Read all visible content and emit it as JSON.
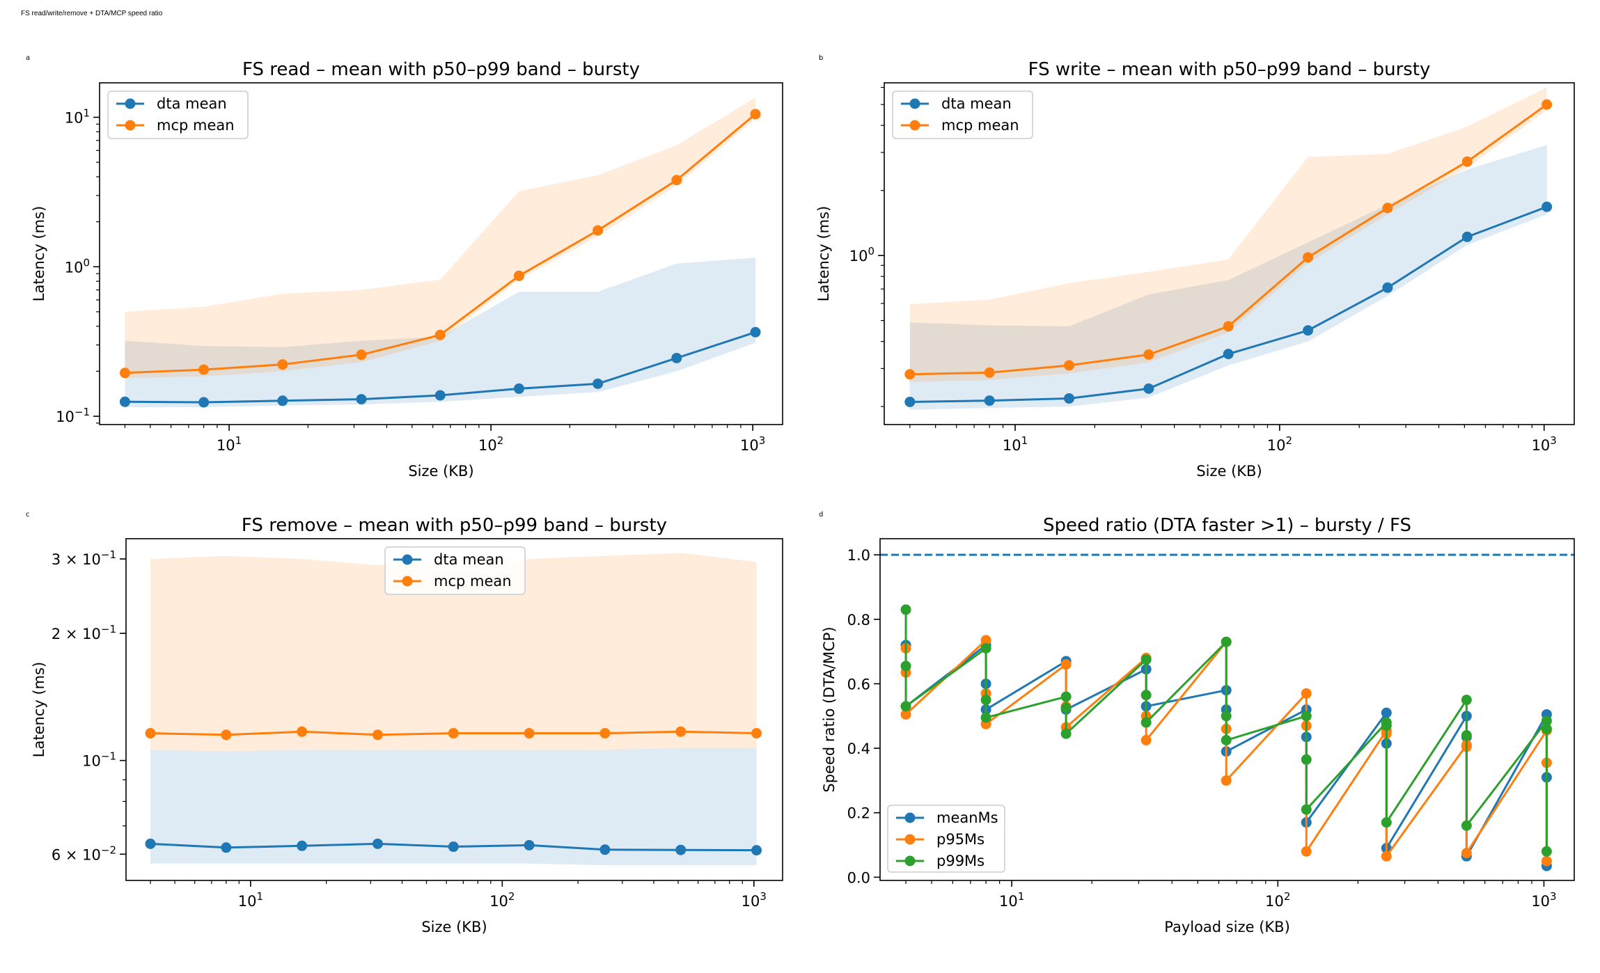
{
  "figure": {
    "suptitle": "FS read/write/remove + DTA/MCP speed ratio"
  },
  "colors": {
    "blue": "#1f77b4",
    "orange": "#ff7f0e",
    "green": "#2ca02c"
  },
  "chart_data": [
    {
      "panel_letter": "a",
      "type": "line",
      "title": "FS read – mean with p50–p99 band – bursty",
      "xlabel": "Size (KB)",
      "ylabel": "Latency (ms)",
      "xscale": "log",
      "yscale": "log",
      "xlim": [
        3.2,
        1300
      ],
      "ylim": [
        0.088,
        17
      ],
      "xticks": [
        {
          "v": 10,
          "label": "10^1"
        },
        {
          "v": 100,
          "label": "10^2"
        },
        {
          "v": 1000,
          "label": "10^3"
        }
      ],
      "yticks": [
        {
          "v": 0.1,
          "label": "10^−1"
        },
        {
          "v": 1,
          "label": "10^0"
        },
        {
          "v": 10,
          "label": "10^1"
        }
      ],
      "legend": "upper left",
      "x": [
        4,
        8,
        16,
        32,
        64,
        128,
        256,
        512,
        1024
      ],
      "series": [
        {
          "name": "dta mean",
          "color": "#1f77b4",
          "values": [
            0.125,
            0.124,
            0.127,
            0.13,
            0.138,
            0.153,
            0.165,
            0.245,
            0.365
          ],
          "band_low": [
            0.115,
            0.115,
            0.118,
            0.12,
            0.125,
            0.135,
            0.145,
            0.2,
            0.31
          ],
          "band_high": [
            0.32,
            0.295,
            0.29,
            0.32,
            0.34,
            0.68,
            0.68,
            1.05,
            1.15
          ]
        },
        {
          "name": "mcp mean",
          "color": "#ff7f0e",
          "values": [
            0.195,
            0.205,
            0.222,
            0.258,
            0.35,
            0.87,
            1.75,
            3.8,
            10.5
          ],
          "band_low": [
            0.18,
            0.185,
            0.2,
            0.23,
            0.32,
            0.82,
            1.6,
            3.5,
            9.8
          ],
          "band_high": [
            0.5,
            0.54,
            0.66,
            0.7,
            0.82,
            3.2,
            4.1,
            6.5,
            13.5
          ]
        }
      ]
    },
    {
      "panel_letter": "b",
      "type": "line",
      "title": "FS write – mean with p50–p99 band – bursty",
      "xlabel": "Size (KB)",
      "ylabel": "Latency (ms)",
      "xscale": "log",
      "yscale": "log",
      "xlim": [
        3.2,
        1300
      ],
      "ylim": [
        0.165,
        6.3
      ],
      "xticks": [
        {
          "v": 10,
          "label": "10^1"
        },
        {
          "v": 100,
          "label": "10^2"
        },
        {
          "v": 1000,
          "label": "10^3"
        }
      ],
      "yticks": [
        {
          "v": 1,
          "label": "10^0"
        }
      ],
      "legend": "upper left",
      "x": [
        4,
        8,
        16,
        32,
        64,
        128,
        256,
        512,
        1024
      ],
      "series": [
        {
          "name": "dta mean",
          "color": "#1f77b4",
          "values": [
            0.21,
            0.213,
            0.218,
            0.242,
            0.35,
            0.45,
            0.71,
            1.22,
            1.68
          ],
          "band_low": [
            0.193,
            0.197,
            0.2,
            0.22,
            0.31,
            0.4,
            0.65,
            1.12,
            1.55
          ],
          "band_high": [
            0.49,
            0.475,
            0.47,
            0.66,
            0.77,
            1.15,
            1.72,
            2.5,
            3.25
          ]
        },
        {
          "name": "mcp mean",
          "color": "#ff7f0e",
          "values": [
            0.282,
            0.287,
            0.31,
            0.348,
            0.47,
            0.98,
            1.66,
            2.72,
            5.0
          ],
          "band_low": [
            0.26,
            0.265,
            0.285,
            0.32,
            0.44,
            0.92,
            1.55,
            2.55,
            4.7
          ],
          "band_high": [
            0.595,
            0.625,
            0.745,
            0.84,
            0.96,
            2.86,
            2.95,
            3.95,
            6.0
          ]
        }
      ]
    },
    {
      "panel_letter": "c",
      "type": "line",
      "title": "FS remove – mean with p50–p99 band – bursty",
      "xlabel": "Size (KB)",
      "ylabel": "Latency (ms)",
      "xscale": "log",
      "yscale": "log",
      "xlim": [
        3.2,
        1300
      ],
      "ylim": [
        0.052,
        0.335
      ],
      "xticks": [
        {
          "v": 10,
          "label": "10^1"
        },
        {
          "v": 100,
          "label": "10^2"
        },
        {
          "v": 1000,
          "label": "10^3"
        }
      ],
      "yticks": [
        {
          "v": 0.06,
          "label": "6 × 10^−2"
        },
        {
          "v": 0.1,
          "label": "10^−1"
        },
        {
          "v": 0.2,
          "label": "2 × 10^−1"
        },
        {
          "v": 0.3,
          "label": "3 × 10^−1"
        }
      ],
      "legend": "upper center",
      "x": [
        4,
        8,
        16,
        32,
        64,
        128,
        256,
        512,
        1024
      ],
      "series": [
        {
          "name": "dta mean",
          "color": "#1f77b4",
          "values": [
            0.0635,
            0.0622,
            0.0628,
            0.0635,
            0.0625,
            0.063,
            0.0615,
            0.0614,
            0.0613
          ],
          "band_low": [
            0.057,
            0.057,
            0.057,
            0.057,
            0.057,
            0.057,
            0.0565,
            0.0565,
            0.0565
          ],
          "band_high": [
            0.106,
            0.105,
            0.106,
            0.106,
            0.106,
            0.106,
            0.106,
            0.107,
            0.107
          ]
        },
        {
          "name": "mcp mean",
          "color": "#ff7f0e",
          "values": [
            0.116,
            0.115,
            0.117,
            0.115,
            0.116,
            0.116,
            0.116,
            0.117,
            0.116
          ],
          "band_low": [
            0.106,
            0.105,
            0.106,
            0.106,
            0.106,
            0.106,
            0.106,
            0.107,
            0.107
          ],
          "band_high": [
            0.157,
            0.151,
            0.156,
            0.16,
            0.145,
            0.15,
            0.144,
            0.139,
            0.14
          ],
          "band_top": [
            0.3,
            0.305,
            0.3,
            0.29,
            0.29,
            0.3,
            0.305,
            0.31,
            0.295
          ]
        }
      ]
    },
    {
      "panel_letter": "d",
      "type": "line",
      "title": "Speed ratio (DTA faster >1) – bursty / FS",
      "xlabel": "Payload size (KB)",
      "ylabel": "Speed ratio (DTA/MCP)",
      "xscale": "log",
      "yscale": "linear",
      "xlim": [
        3.2,
        1300
      ],
      "ylim": [
        -0.01,
        1.05
      ],
      "xticks": [
        {
          "v": 10,
          "label": "10^1"
        },
        {
          "v": 100,
          "label": "10^2"
        },
        {
          "v": 1000,
          "label": "10^3"
        }
      ],
      "yticks": [
        {
          "v": 0,
          "label": "0.0"
        },
        {
          "v": 0.2,
          "label": "0.2"
        },
        {
          "v": 0.4,
          "label": "0.4"
        },
        {
          "v": 0.6,
          "label": "0.6"
        },
        {
          "v": 0.8,
          "label": "0.8"
        },
        {
          "v": 1.0,
          "label": "1.0"
        }
      ],
      "reference_line": 1.0,
      "legend": "lower left",
      "x": [
        4,
        8,
        16,
        32,
        64,
        128,
        256,
        512,
        1024
      ],
      "series": [
        {
          "name": "meanMs",
          "color": "#1f77b4",
          "points": [
            [
              4,
              0.72
            ],
            [
              4,
              0.53
            ],
            [
              8,
              0.72
            ],
            [
              8,
              0.6
            ],
            [
              8,
              0.52
            ],
            [
              16,
              0.67
            ],
            [
              16,
              0.52
            ],
            [
              32,
              0.645
            ],
            [
              32,
              0.53
            ],
            [
              64,
              0.58
            ],
            [
              64,
              0.52
            ],
            [
              64,
              0.39
            ],
            [
              128,
              0.52
            ],
            [
              128,
              0.435
            ],
            [
              128,
              0.17
            ],
            [
              256,
              0.51
            ],
            [
              256,
              0.415
            ],
            [
              256,
              0.09
            ],
            [
              512,
              0.5
            ],
            [
              512,
              0.435
            ],
            [
              512,
              0.065
            ],
            [
              1024,
              0.505
            ],
            [
              1024,
              0.31
            ],
            [
              1024,
              0.035
            ]
          ]
        },
        {
          "name": "p95Ms",
          "color": "#ff7f0e",
          "points": [
            [
              4,
              0.71
            ],
            [
              4,
              0.635
            ],
            [
              4,
              0.505
            ],
            [
              8,
              0.735
            ],
            [
              8,
              0.57
            ],
            [
              8,
              0.475
            ],
            [
              16,
              0.66
            ],
            [
              16,
              0.53
            ],
            [
              16,
              0.465
            ],
            [
              32,
              0.68
            ],
            [
              32,
              0.5
            ],
            [
              32,
              0.425
            ],
            [
              64,
              0.73
            ],
            [
              64,
              0.46
            ],
            [
              64,
              0.3
            ],
            [
              128,
              0.57
            ],
            [
              128,
              0.47
            ],
            [
              128,
              0.08
            ],
            [
              256,
              0.455
            ],
            [
              256,
              0.445
            ],
            [
              256,
              0.065
            ],
            [
              512,
              0.41
            ],
            [
              512,
              0.405
            ],
            [
              512,
              0.075
            ],
            [
              1024,
              0.455
            ],
            [
              1024,
              0.355
            ],
            [
              1024,
              0.05
            ]
          ]
        },
        {
          "name": "p99Ms",
          "color": "#2ca02c",
          "points": [
            [
              4,
              0.83
            ],
            [
              4,
              0.655
            ],
            [
              4,
              0.53
            ],
            [
              8,
              0.71
            ],
            [
              8,
              0.55
            ],
            [
              8,
              0.495
            ],
            [
              16,
              0.56
            ],
            [
              16,
              0.525
            ],
            [
              16,
              0.445
            ],
            [
              32,
              0.675
            ],
            [
              32,
              0.565
            ],
            [
              32,
              0.48
            ],
            [
              64,
              0.73
            ],
            [
              64,
              0.5
            ],
            [
              64,
              0.425
            ],
            [
              128,
              0.5
            ],
            [
              128,
              0.365
            ],
            [
              128,
              0.21
            ],
            [
              256,
              0.48
            ],
            [
              256,
              0.47
            ],
            [
              256,
              0.17
            ],
            [
              512,
              0.55
            ],
            [
              512,
              0.44
            ],
            [
              512,
              0.16
            ],
            [
              1024,
              0.485
            ],
            [
              1024,
              0.46
            ],
            [
              1024,
              0.08
            ]
          ]
        }
      ]
    }
  ]
}
